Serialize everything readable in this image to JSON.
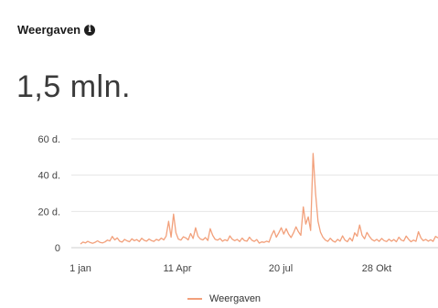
{
  "card": {
    "title": "Weergaven",
    "info_icon": "info-icon",
    "total": "1,5 mln."
  },
  "colors": {
    "line": "#f2a07b",
    "grid": "#e6e6e6",
    "axis": "#cfcfcf"
  },
  "chart_data": {
    "type": "line",
    "title": "",
    "xlabel": "",
    "ylabel": "",
    "x_ticks": [
      "1 jan",
      "11 Apr",
      "20 jul",
      "28 Okt"
    ],
    "y_ticks": [
      "0",
      "20 d.",
      "40 d.",
      "60 d."
    ],
    "ylim": [
      0,
      60000
    ],
    "grid": true,
    "legend": "bottom",
    "series": [
      {
        "name": "Weergaven",
        "values": [
          2000,
          3100,
          2600,
          3500,
          2800,
          2400,
          3000,
          3800,
          2900,
          2600,
          3200,
          4200,
          3700,
          6200,
          4300,
          5400,
          3600,
          3100,
          4600,
          3800,
          3300,
          4900,
          3900,
          4500,
          3400,
          5200,
          4100,
          3600,
          4800,
          3900,
          3500,
          4600,
          4000,
          5300,
          4300,
          6400,
          14500,
          5800,
          18500,
          8200,
          4700,
          4200,
          6000,
          5400,
          4300,
          7800,
          5100,
          11000,
          6300,
          4800,
          4300,
          5600,
          4000,
          10500,
          6800,
          4600,
          4200,
          5100,
          3600,
          4400,
          3800,
          6500,
          4700,
          3900,
          4600,
          3400,
          5300,
          3900,
          3600,
          5800,
          4100,
          3500,
          4500,
          2500,
          3200,
          2900,
          3600,
          3100,
          6800,
          9500,
          5800,
          8200,
          11000,
          7500,
          10500,
          7500,
          5600,
          8200,
          11500,
          8800,
          6800,
          22500,
          13000,
          17000,
          9500,
          52000,
          30000,
          14500,
          8500,
          5800,
          4200,
          3500,
          5200,
          3800,
          3100,
          4600,
          3600,
          6500,
          4200,
          3300,
          5400,
          3700,
          8200,
          6300,
          12500,
          6800,
          4900,
          8400,
          6200,
          4500,
          3700,
          4600,
          3500,
          5100,
          3900,
          3400,
          4700,
          3600,
          4500,
          3300,
          5800,
          4200,
          3700,
          6400,
          4600,
          3300,
          4200,
          3500,
          8800,
          5400,
          3900,
          4600,
          3600,
          4400,
          3500,
          6200,
          5400
        ]
      }
    ]
  }
}
